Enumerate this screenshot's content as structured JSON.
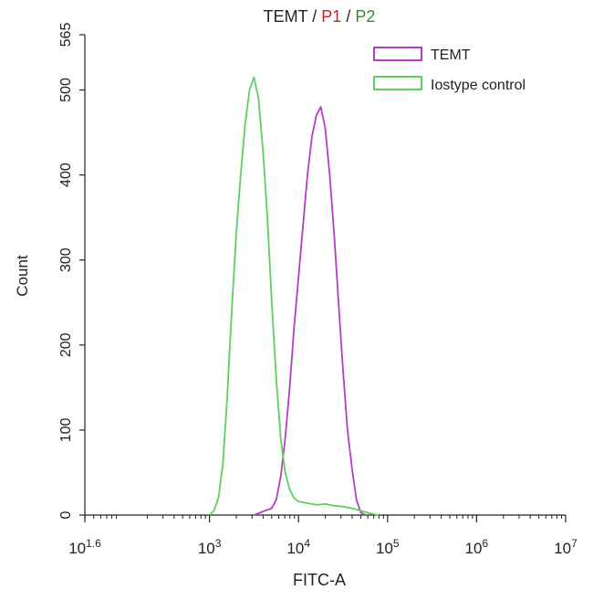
{
  "chart_data": {
    "type": "line",
    "title_parts": [
      {
        "text": "TEMT",
        "color": "#222222"
      },
      {
        "text": " / ",
        "color": "#222222"
      },
      {
        "text": "P1",
        "color": "#cc2222"
      },
      {
        "text": " / ",
        "color": "#222222"
      },
      {
        "text": "P2",
        "color": "#2e8b3a"
      }
    ],
    "xlabel": "FITC-A",
    "ylabel": "Count",
    "x_scale": "log10",
    "xlim": [
      1.6,
      7
    ],
    "ylim": [
      0,
      565
    ],
    "y_ticks": [
      "0",
      "100",
      "200",
      "300",
      "400",
      "500",
      "565"
    ],
    "y_tick_values": [
      0,
      100,
      200,
      300,
      400,
      500,
      565
    ],
    "x_ticks": [
      {
        "base": "10",
        "exp": "1.6",
        "log": 1.6
      },
      {
        "base": "10",
        "exp": "3",
        "log": 3
      },
      {
        "base": "10",
        "exp": "4",
        "log": 4
      },
      {
        "base": "10",
        "exp": "5",
        "log": 5
      },
      {
        "base": "10",
        "exp": "6",
        "log": 6
      },
      {
        "base": "10",
        "exp": "7",
        "log": 7
      }
    ],
    "legend_position": "top-right",
    "series": [
      {
        "name": "TEMT",
        "color": "#b63cc6",
        "points": [
          [
            3.5,
            0
          ],
          [
            3.55,
            2
          ],
          [
            3.62,
            5
          ],
          [
            3.7,
            8
          ],
          [
            3.75,
            18
          ],
          [
            3.8,
            45
          ],
          [
            3.85,
            90
          ],
          [
            3.9,
            150
          ],
          [
            3.95,
            220
          ],
          [
            4.0,
            280
          ],
          [
            4.05,
            340
          ],
          [
            4.1,
            400
          ],
          [
            4.15,
            445
          ],
          [
            4.2,
            470
          ],
          [
            4.25,
            480
          ],
          [
            4.3,
            455
          ],
          [
            4.35,
            400
          ],
          [
            4.4,
            330
          ],
          [
            4.45,
            250
          ],
          [
            4.5,
            170
          ],
          [
            4.55,
            100
          ],
          [
            4.6,
            55
          ],
          [
            4.65,
            18
          ],
          [
            4.7,
            3
          ],
          [
            4.75,
            0
          ]
        ]
      },
      {
        "name": "Iostype control",
        "color": "#5fcf5f",
        "points": [
          [
            3.0,
            0
          ],
          [
            3.05,
            5
          ],
          [
            3.1,
            20
          ],
          [
            3.15,
            60
          ],
          [
            3.2,
            140
          ],
          [
            3.25,
            240
          ],
          [
            3.3,
            330
          ],
          [
            3.35,
            400
          ],
          [
            3.4,
            460
          ],
          [
            3.45,
            500
          ],
          [
            3.5,
            515
          ],
          [
            3.55,
            490
          ],
          [
            3.6,
            430
          ],
          [
            3.65,
            350
          ],
          [
            3.7,
            250
          ],
          [
            3.75,
            160
          ],
          [
            3.8,
            90
          ],
          [
            3.85,
            50
          ],
          [
            3.9,
            30
          ],
          [
            3.95,
            20
          ],
          [
            4.0,
            16
          ],
          [
            4.1,
            14
          ],
          [
            4.2,
            12
          ],
          [
            4.3,
            13
          ],
          [
            4.4,
            11
          ],
          [
            4.5,
            10
          ],
          [
            4.6,
            8
          ],
          [
            4.7,
            5
          ],
          [
            4.8,
            2
          ],
          [
            4.9,
            0
          ]
        ]
      }
    ]
  }
}
